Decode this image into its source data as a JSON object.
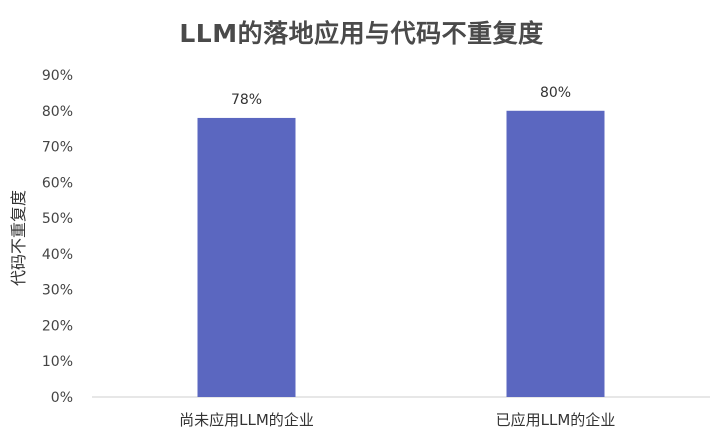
{
  "chart_data": {
    "type": "bar",
    "title": "LLM的落地应用与代码不重复度",
    "xlabel": "",
    "ylabel": "代码不重复度",
    "categories": [
      "尚未应用LLM的企业",
      "已应用LLM的企业"
    ],
    "values": [
      78,
      80
    ],
    "data_labels": [
      "78%",
      "80%"
    ],
    "ylim": [
      0,
      90
    ],
    "y_ticks": [
      0,
      10,
      20,
      30,
      40,
      50,
      60,
      70,
      80,
      90
    ],
    "y_tick_labels": [
      "0%",
      "10%",
      "20%",
      "30%",
      "40%",
      "50%",
      "60%",
      "70%",
      "80%",
      "90%"
    ],
    "bar_color": "#5b67c0",
    "grid": false,
    "legend": "none"
  }
}
